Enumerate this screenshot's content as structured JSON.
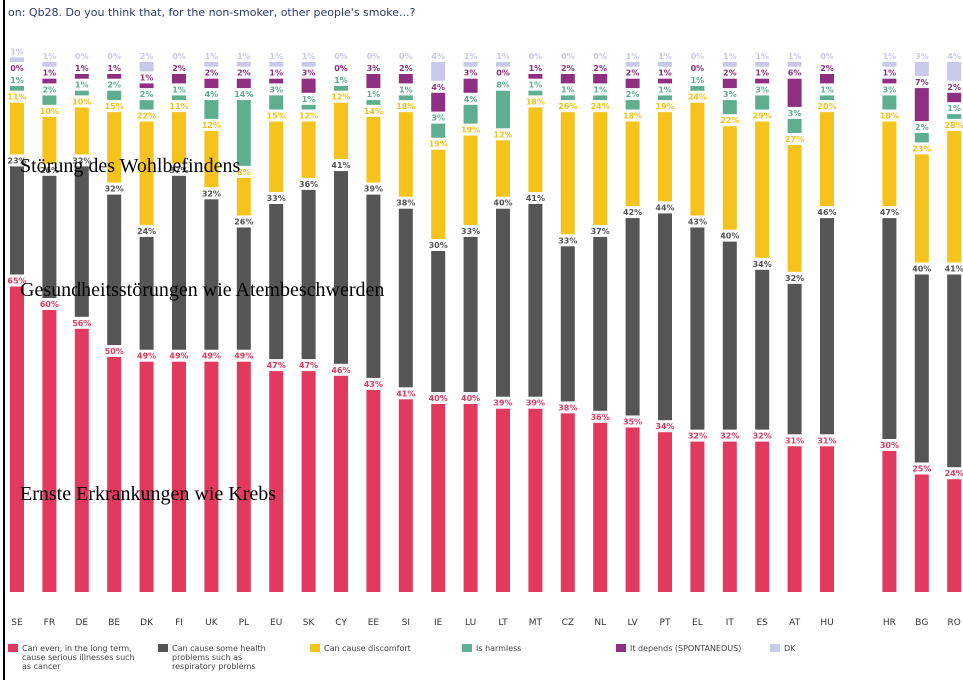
{
  "chart_data": {
    "type": "stacked-bar",
    "title": "on: Qb28. Do you think that, for the non-smoker, other people's smoke...?",
    "annotations": [
      "Störung des Wohlbefindens",
      "Gesundheitsstörungen wie Atembeschwerden",
      "Ernste Erkrankungen wie Krebs"
    ],
    "categories": [
      "SE",
      "FR",
      "DE",
      "BE",
      "DK",
      "FI",
      "UK",
      "PL",
      "EU",
      "SK",
      "CY",
      "EE",
      "SI",
      "IE",
      "LU",
      "LT",
      "MT",
      "CZ",
      "NL",
      "LV",
      "PT",
      "EL",
      "IT",
      "ES",
      "AT",
      "HU",
      "HR",
      "BG",
      "RO"
    ],
    "series": [
      {
        "name": "Can even, in the long term, cause serious illnesses such as cancer",
        "color": "#e23a5e",
        "values": [
          65,
          60,
          56,
          50,
          49,
          49,
          49,
          49,
          47,
          47,
          46,
          43,
          41,
          40,
          40,
          39,
          39,
          38,
          36,
          35,
          34,
          32,
          32,
          32,
          31,
          31,
          30,
          25,
          24
        ],
        "value_labels": [
          "65%",
          "60%",
          "56%",
          "50%",
          "49%",
          "49%",
          "49%",
          "49%",
          "47%",
          "47%",
          "46%",
          "43%",
          "41%",
          "40%",
          "40%",
          "39%",
          "39%",
          "38%",
          "36%",
          "35%",
          "34%",
          "32%",
          "32%",
          "32%",
          "31%",
          "31%",
          "30%",
          "25%",
          "24%"
        ]
      },
      {
        "name": "Can cause some health problems such as respiratory problems",
        "color": "#555555",
        "values": [
          23,
          26,
          32,
          32,
          24,
          37,
          32,
          26,
          33,
          36,
          41,
          39,
          38,
          30,
          33,
          40,
          41,
          33,
          37,
          42,
          44,
          43,
          40,
          34,
          32,
          46,
          47,
          40,
          41
        ],
        "value_labels": [
          "23%",
          "26%",
          "32%",
          "32%",
          "24%",
          "37%",
          "32%",
          "26%",
          "33%",
          "36%",
          "41%",
          "39%",
          "38%",
          "30%",
          "33%",
          "40%",
          "41%",
          "33%",
          "37%",
          "42%",
          "44%",
          "43%",
          "40%",
          "34%",
          "32%",
          "46%",
          "47%",
          "40%",
          "41%"
        ]
      },
      {
        "name": "Can cause discomfort",
        "color": "#f6c31c",
        "values": [
          11,
          10,
          10,
          15,
          22,
          11,
          12,
          8,
          15,
          12,
          12,
          14,
          18,
          19,
          19,
          12,
          18,
          26,
          24,
          18,
          19,
          24,
          22,
          29,
          27,
          20,
          18,
          23,
          28
        ],
        "value_labels": [
          "11%",
          "10%",
          "10%",
          "15%",
          "22%",
          "11%",
          "12%",
          "8%",
          "15%",
          "12%",
          "12%",
          "14%",
          "18%",
          "19%",
          "19%",
          "12%",
          "18%",
          "26%",
          "24%",
          "18%",
          "19%",
          "24%",
          "22%",
          "29%",
          "27%",
          "20%",
          "18%",
          "23%",
          "28%"
        ]
      },
      {
        "name": "Is harmless",
        "color": "#5fae90",
        "values": [
          1,
          2,
          1,
          2,
          2,
          1,
          4,
          14,
          3,
          1,
          1,
          1,
          1,
          3,
          4,
          8,
          1,
          1,
          1,
          2,
          1,
          1,
          3,
          3,
          3,
          1,
          3,
          2,
          1
        ],
        "value_labels": [
          "1%",
          "2%",
          "1%",
          "2%",
          "2%",
          "1%",
          "4%",
          "14%",
          "3%",
          "1%",
          "1%",
          "1%",
          "1%",
          "3%",
          "4%",
          "8%",
          "1%",
          "1%",
          "1%",
          "2%",
          "1%",
          "1%",
          "3%",
          "3%",
          "3%",
          "1%",
          "3%",
          "2%",
          "1%"
        ]
      },
      {
        "name": "It depends (SPONTANEOUS)",
        "color": "#8e2f82",
        "values": [
          0,
          1,
          1,
          1,
          1,
          2,
          2,
          2,
          1,
          3,
          0,
          3,
          2,
          4,
          3,
          0,
          1,
          2,
          2,
          2,
          1,
          0,
          2,
          1,
          6,
          2,
          1,
          7,
          2
        ],
        "value_labels": [
          "0%",
          "1%",
          "1%",
          "1%",
          "1%",
          "2%",
          "2%",
          "2%",
          "1%",
          "3%",
          "0%",
          "3%",
          "2%",
          "4%",
          "3%",
          "0%",
          "1%",
          "2%",
          "2%",
          "2%",
          "1%",
          "0%",
          "2%",
          "1%",
          "6%",
          "2%",
          "1%",
          "7%",
          "2%"
        ]
      },
      {
        "name": "DK",
        "color": "#c9c9ea",
        "values": [
          1,
          1,
          0,
          0,
          2,
          0,
          1,
          1,
          1,
          1,
          0,
          0,
          0,
          4,
          1,
          1,
          0,
          0,
          0,
          1,
          1,
          0,
          1,
          1,
          1,
          0,
          1,
          3,
          4
        ],
        "value_labels": [
          "1%",
          "1%",
          "0%",
          "0%",
          "2%",
          "0%",
          "1%",
          "1%",
          "1%",
          "1%",
          "0%",
          "0%",
          "0%",
          "4%",
          "1%",
          "1%",
          "0%",
          "0%",
          "0%",
          "1%",
          "1%",
          "0%",
          "1%",
          "1%",
          "1%",
          "0%",
          "1%",
          "3%",
          "4%"
        ]
      }
    ]
  }
}
